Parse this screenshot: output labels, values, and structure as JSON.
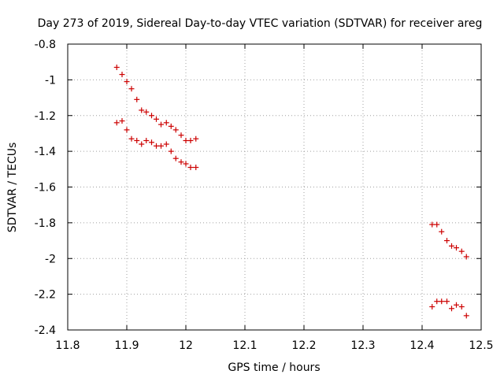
{
  "chart_data": {
    "type": "scatter",
    "title": "Day 273 of 2019, Sidereal Day-to-day VTEC variation (SDTVAR) for receiver areg",
    "xlabel": "GPS time / hours",
    "ylabel": "SDTVAR / TECUs",
    "xlim": [
      11.8,
      12.5
    ],
    "ylim": [
      -2.4,
      -0.8
    ],
    "xticks": [
      11.8,
      11.9,
      12.0,
      12.1,
      12.2,
      12.3,
      12.4,
      12.5
    ],
    "xtick_labels": [
      "11.8",
      "11.9",
      "12",
      "12.1",
      "12.2",
      "12.3",
      "12.4",
      "12.5"
    ],
    "yticks": [
      -0.8,
      -1.0,
      -1.2,
      -1.4,
      -1.6,
      -1.8,
      -2.0,
      -2.2,
      -2.4
    ],
    "ytick_labels": [
      "-0.8",
      "-1",
      "-1.2",
      "-1.4",
      "-1.6",
      "-1.8",
      "-2",
      "-2.2",
      "-2.4"
    ],
    "grid": true,
    "marker": "+",
    "marker_color": "#cc0000",
    "series": [
      {
        "name": "SDTVAR",
        "points": [
          [
            11.883,
            -0.93
          ],
          [
            11.892,
            -0.97
          ],
          [
            11.9,
            -1.01
          ],
          [
            11.908,
            -1.05
          ],
          [
            11.917,
            -1.11
          ],
          [
            11.925,
            -1.17
          ],
          [
            11.933,
            -1.18
          ],
          [
            11.942,
            -1.2
          ],
          [
            11.95,
            -1.22
          ],
          [
            11.958,
            -1.25
          ],
          [
            11.967,
            -1.24
          ],
          [
            11.975,
            -1.26
          ],
          [
            11.983,
            -1.28
          ],
          [
            11.992,
            -1.31
          ],
          [
            12.0,
            -1.34
          ],
          [
            12.008,
            -1.34
          ],
          [
            12.017,
            -1.33
          ],
          [
            11.883,
            -1.24
          ],
          [
            11.892,
            -1.23
          ],
          [
            11.9,
            -1.28
          ],
          [
            11.908,
            -1.33
          ],
          [
            11.917,
            -1.34
          ],
          [
            11.925,
            -1.36
          ],
          [
            11.933,
            -1.34
          ],
          [
            11.942,
            -1.35
          ],
          [
            11.95,
            -1.37
          ],
          [
            11.958,
            -1.37
          ],
          [
            11.967,
            -1.36
          ],
          [
            11.975,
            -1.4
          ],
          [
            11.983,
            -1.44
          ],
          [
            11.992,
            -1.46
          ],
          [
            12.0,
            -1.47
          ],
          [
            12.008,
            -1.49
          ],
          [
            12.017,
            -1.49
          ],
          [
            12.417,
            -1.81
          ],
          [
            12.425,
            -1.81
          ],
          [
            12.433,
            -1.85
          ],
          [
            12.442,
            -1.9
          ],
          [
            12.45,
            -1.93
          ],
          [
            12.458,
            -1.94
          ],
          [
            12.467,
            -1.96
          ],
          [
            12.475,
            -1.99
          ],
          [
            12.417,
            -2.27
          ],
          [
            12.425,
            -2.24
          ],
          [
            12.433,
            -2.24
          ],
          [
            12.442,
            -2.24
          ],
          [
            12.45,
            -2.28
          ],
          [
            12.458,
            -2.26
          ],
          [
            12.467,
            -2.27
          ],
          [
            12.475,
            -2.32
          ]
        ]
      }
    ]
  }
}
